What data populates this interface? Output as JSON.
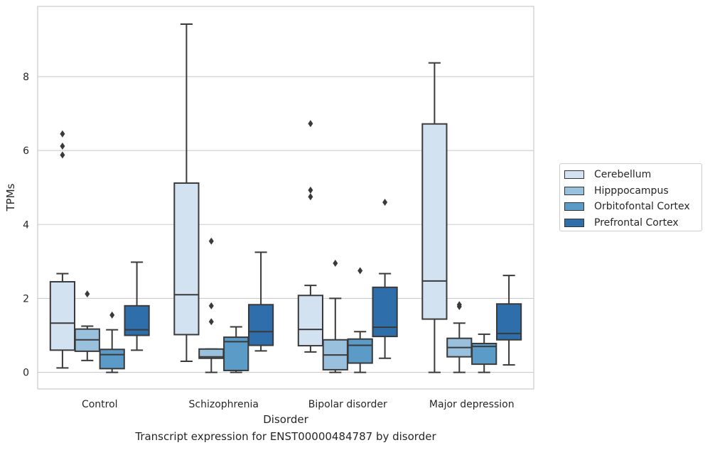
{
  "chart_data": {
    "type": "box",
    "xlabel": "Disorder",
    "ylabel": "TPMs",
    "caption": "Transcript expression for ENST00000484787 by disorder",
    "ylim": [
      -0.45,
      9.9
    ],
    "yticks": [
      0,
      2,
      4,
      6,
      8
    ],
    "grid": "horizontal",
    "legend_placement": "right, outside plot",
    "categories": [
      "Control",
      "Schizophrenia",
      "Bipolar disorder",
      "Major depression"
    ],
    "series": [
      {
        "name": "Cerebellum",
        "color": "#d3e2f1",
        "boxes": [
          {
            "whislo": 0.12,
            "q1": 0.6,
            "med": 1.33,
            "q3": 2.45,
            "whishi": 2.67,
            "fliers": [
              5.88,
              6.12,
              6.45
            ]
          },
          {
            "whislo": 0.3,
            "q1": 1.02,
            "med": 2.1,
            "q3": 5.12,
            "whishi": 9.42,
            "fliers": []
          },
          {
            "whislo": 0.55,
            "q1": 0.72,
            "med": 1.16,
            "q3": 2.08,
            "whishi": 2.35,
            "fliers": [
              4.75,
              4.93,
              6.73
            ]
          },
          {
            "whislo": 0.0,
            "q1": 1.44,
            "med": 2.47,
            "q3": 6.72,
            "whishi": 8.37,
            "fliers": []
          }
        ]
      },
      {
        "name": "Hipppocampus",
        "color": "#99c0dd",
        "boxes": [
          {
            "whislo": 0.32,
            "q1": 0.57,
            "med": 0.88,
            "q3": 1.17,
            "whishi": 1.25,
            "fliers": [
              2.12
            ]
          },
          {
            "whislo": 0.0,
            "q1": 0.38,
            "med": 0.42,
            "q3": 0.63,
            "whishi": 0.63,
            "fliers": [
              1.37,
              1.8,
              3.55
            ]
          },
          {
            "whislo": 0.0,
            "q1": 0.07,
            "med": 0.47,
            "q3": 0.88,
            "whishi": 2.0,
            "fliers": [
              2.95
            ]
          },
          {
            "whislo": 0.0,
            "q1": 0.42,
            "med": 0.67,
            "q3": 0.92,
            "whishi": 1.33,
            "fliers": [
              1.78,
              1.83
            ]
          }
        ]
      },
      {
        "name": "Orbitofontal Cortex",
        "color": "#5a9bc8",
        "boxes": [
          {
            "whislo": 0.0,
            "q1": 0.1,
            "med": 0.48,
            "q3": 0.62,
            "whishi": 1.15,
            "fliers": [
              1.55
            ]
          },
          {
            "whislo": 0.0,
            "q1": 0.05,
            "med": 0.83,
            "q3": 0.95,
            "whishi": 1.23,
            "fliers": []
          },
          {
            "whislo": 0.0,
            "q1": 0.25,
            "med": 0.73,
            "q3": 0.9,
            "whishi": 1.1,
            "fliers": [
              2.75
            ]
          },
          {
            "whislo": 0.0,
            "q1": 0.22,
            "med": 0.7,
            "q3": 0.78,
            "whishi": 1.03,
            "fliers": []
          }
        ]
      },
      {
        "name": "Prefrontal Cortex",
        "color": "#2d6eab",
        "boxes": [
          {
            "whislo": 0.6,
            "q1": 1.0,
            "med": 1.15,
            "q3": 1.8,
            "whishi": 2.98,
            "fliers": []
          },
          {
            "whislo": 0.58,
            "q1": 0.73,
            "med": 1.1,
            "q3": 1.83,
            "whishi": 3.25,
            "fliers": []
          },
          {
            "whislo": 0.38,
            "q1": 0.97,
            "med": 1.22,
            "q3": 2.3,
            "whishi": 2.67,
            "fliers": [
              4.6
            ]
          },
          {
            "whislo": 0.2,
            "q1": 0.88,
            "med": 1.05,
            "q3": 1.85,
            "whishi": 2.62,
            "fliers": []
          }
        ]
      }
    ]
  }
}
